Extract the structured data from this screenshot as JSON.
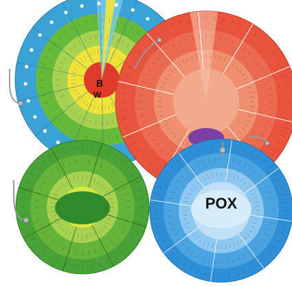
{
  "wheels": {
    "blue": {
      "center_text_line1": "B",
      "center_text_line2": "W"
    },
    "red": {
      "center_text": ""
    },
    "green": {
      "center_text_line1": "",
      "center_text_line2": "",
      "center_text_line3": ""
    },
    "pox": {
      "title": "POX",
      "subtitle_line1": "",
      "subtitle_line2": "",
      "subtitle_line3": ""
    }
  },
  "colors": {
    "blue": "#3aa2d6",
    "blue_light": "#7bc9ea",
    "green": "#66b33a",
    "green_light": "#a6d24f",
    "yellow": "#f2e33a",
    "red": "#e8533d",
    "red_light": "#f08f70",
    "purple": "#7d3fa3",
    "pox_blue": "#2e8fd6",
    "pox_light": "#8ec8f0",
    "hook": "#9a9a9a"
  }
}
